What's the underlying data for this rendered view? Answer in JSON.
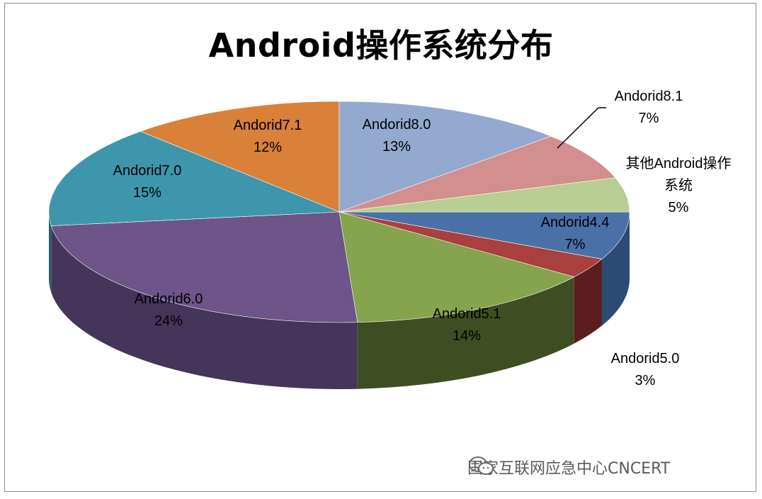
{
  "chart_data": {
    "type": "pie",
    "title": "Android操作系统分布",
    "slices": [
      {
        "label": "Andorid4.4",
        "value": 7,
        "display": "7%",
        "color": "#4a70a8",
        "side": "#2b4a75"
      },
      {
        "label": "Andorid5.0",
        "value": 3,
        "display": "3%",
        "color": "#a8403d",
        "side": "#5c1e1c"
      },
      {
        "label": "Andorid5.1",
        "value": 14,
        "display": "14%",
        "color": "#86a34d",
        "side": "#3e4e22"
      },
      {
        "label": "Andorid6.0",
        "value": 24,
        "display": "24%",
        "color": "#6d5489",
        "side": "#45355a"
      },
      {
        "label": "Andorid7.0",
        "value": 15,
        "display": "15%",
        "color": "#3e96ad",
        "side": "#24606e"
      },
      {
        "label": "Andorid7.1",
        "value": 12,
        "display": "12%",
        "color": "#d98039",
        "side": "#8a4c1c"
      },
      {
        "label": "Andorid8.0",
        "value": 13,
        "display": "13%",
        "color": "#93a9d0",
        "side": "#5d6f91"
      },
      {
        "label": "Andorid8.1",
        "value": 7,
        "display": "7%",
        "color": "#d38f8d",
        "side": "#8d5856"
      },
      {
        "label": "其他Android操作系统",
        "value": 5,
        "display": "5%",
        "color": "#b8ce92",
        "side": "#7a8c58",
        "label_lines": [
          "其他Android操作",
          "系统"
        ]
      }
    ],
    "legend": "none"
  },
  "watermark": {
    "text": "国家互联网应急中心CNCERT",
    "icon": "wechat-icon"
  }
}
